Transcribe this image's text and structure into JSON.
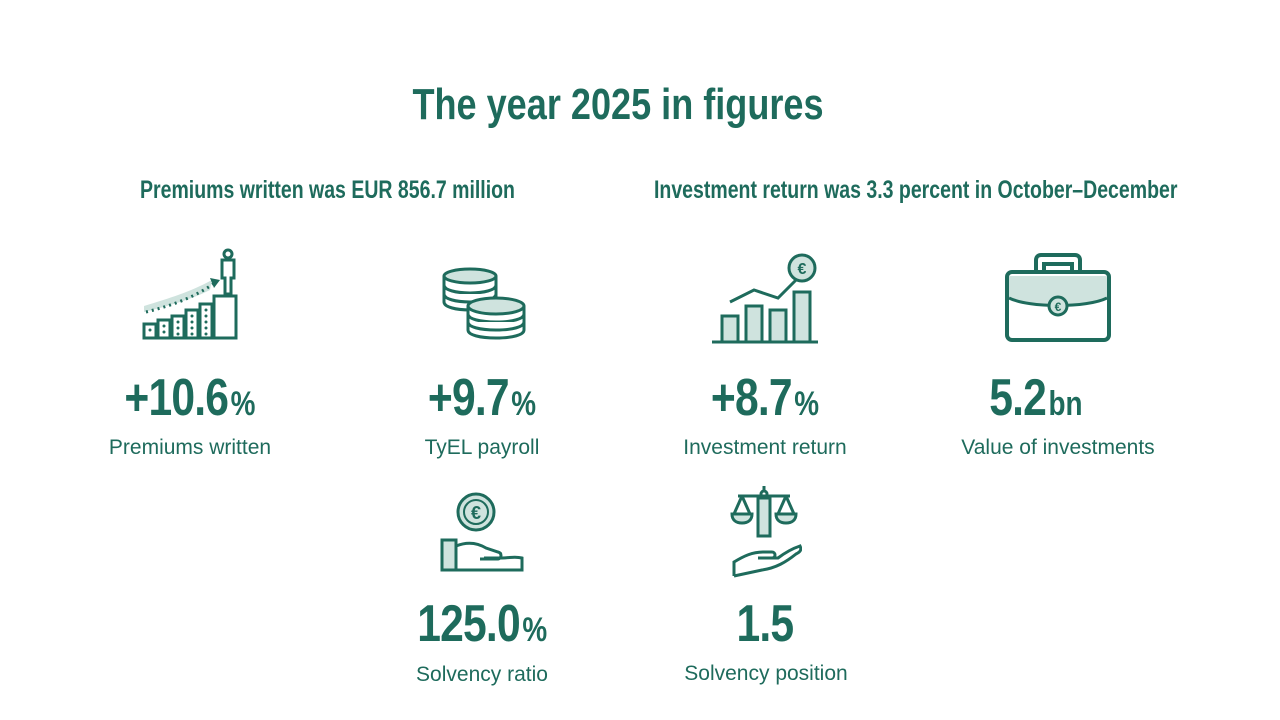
{
  "page": {
    "title": "The year 2025 in figures",
    "subtitle_left": "Premiums written was EUR 856.7 million",
    "subtitle_right": "Investment return was 3.3 percent in October–December"
  },
  "colors": {
    "primary": "#1e6b5c",
    "light": "#cfe3de",
    "background": "#ffffff"
  },
  "metrics": [
    {
      "icon": "growth-stairs-person-icon",
      "value": "+10.6",
      "unit": "%",
      "label": "Premiums written"
    },
    {
      "icon": "coins-stack-icon",
      "value": "+9.7",
      "unit": "%",
      "label": "TyEL payroll"
    },
    {
      "icon": "bar-chart-euro-icon",
      "value": "+8.7",
      "unit": "%",
      "label": "Investment return"
    },
    {
      "icon": "briefcase-euro-icon",
      "value": "5.2",
      "unit": "bn",
      "label": "Value of investments"
    },
    {
      "icon": "hand-euro-coin-icon",
      "value": "125.0",
      "unit": "%",
      "label": "Solvency ratio"
    },
    {
      "icon": "scales-hand-icon",
      "value": "1.5",
      "unit": "",
      "label": "Solvency position"
    }
  ]
}
